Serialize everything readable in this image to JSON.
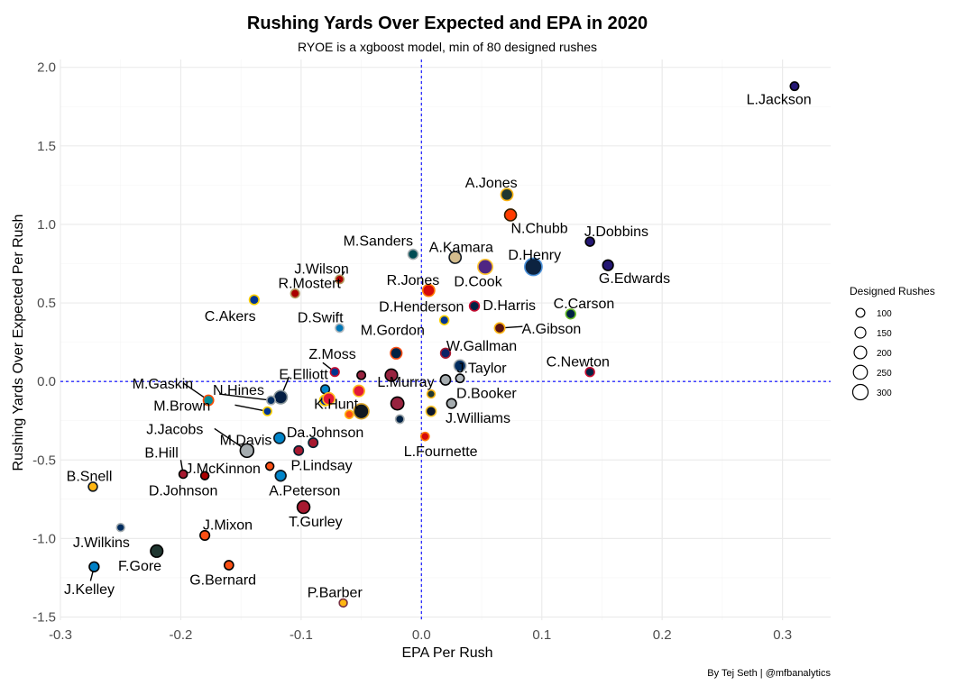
{
  "chart_data": {
    "type": "scatter",
    "title": "Rushing Yards Over Expected and EPA in 2020",
    "subtitle": "RYOE is a xgboost model, min of 80 designed rushes",
    "xlabel": "EPA Per Rush",
    "ylabel": "Rushing Yards Over Expected Per Rush",
    "caption": "By Tej Seth | @mfbanalytics",
    "xlim": [
      -0.3,
      0.34
    ],
    "ylim": [
      -1.52,
      2.05
    ],
    "x_ticks": [
      -0.3,
      -0.2,
      -0.1,
      0.0,
      0.1,
      0.2,
      0.3
    ],
    "x_tick_labels": [
      "-0.3",
      "-0.2",
      "-0.1",
      "0.0",
      "0.1",
      "0.2",
      "0.3"
    ],
    "y_ticks": [
      -1.5,
      -1.0,
      -0.5,
      0.0,
      0.5,
      1.0,
      1.5,
      2.0
    ],
    "y_tick_labels": [
      "-1.5",
      "-1.0",
      "-0.5",
      "0.0",
      "0.5",
      "1.0",
      "1.5",
      "2.0"
    ],
    "reference_lines": {
      "x": 0,
      "y": 0,
      "color": "#2b2bff"
    },
    "grid": true,
    "legend": {
      "title": "Designed Rushes",
      "placement": "right",
      "values": [
        100,
        150,
        200,
        250,
        300
      ],
      "labels": [
        "100",
        "150",
        "200",
        "250",
        "300"
      ]
    },
    "points": [
      {
        "label": "L.Jackson",
        "x": 0.31,
        "y": 1.88,
        "rushes": 90,
        "fill": "#241773",
        "stroke": "#000000",
        "lx": 0.297,
        "ly": 1.8
      },
      {
        "label": "A.Jones",
        "x": 0.071,
        "y": 1.19,
        "rushes": 180,
        "fill": "#203731",
        "stroke": "#FFB612",
        "lx": 0.058,
        "ly": 1.27
      },
      {
        "label": "N.Chubb",
        "x": 0.074,
        "y": 1.06,
        "rushes": 175,
        "fill": "#FF3C00",
        "stroke": "#311D00",
        "lx": 0.098,
        "ly": 0.98
      },
      {
        "label": "J.Dobbins",
        "x": 0.14,
        "y": 0.89,
        "rushes": 100,
        "fill": "#241773",
        "stroke": "#000000",
        "lx": 0.162,
        "ly": 0.96
      },
      {
        "label": "G.Edwards",
        "x": 0.155,
        "y": 0.74,
        "rushes": 140,
        "fill": "#241773",
        "stroke": "#000000",
        "lx": 0.177,
        "ly": 0.66
      },
      {
        "label": "M.Sanders",
        "x": -0.007,
        "y": 0.81,
        "rushes": 125,
        "fill": "#004C54",
        "stroke": "#A5ACAF",
        "lx": -0.036,
        "ly": 0.9
      },
      {
        "label": "A.Kamara",
        "x": 0.028,
        "y": 0.79,
        "rushes": 180,
        "fill": "#D3BC8D",
        "stroke": "#101820",
        "lx": 0.033,
        "ly": 0.86
      },
      {
        "label": "D.Henry",
        "x": 0.093,
        "y": 0.73,
        "rushes": 380,
        "fill": "#0C2340",
        "stroke": "#4B92DB",
        "lx": 0.094,
        "ly": 0.81
      },
      {
        "label": "D.Cook",
        "x": 0.053,
        "y": 0.73,
        "rushes": 280,
        "fill": "#4F2683",
        "stroke": "#FFC62F",
        "lx": 0.047,
        "ly": 0.64
      },
      {
        "label": "J.Wilson",
        "x": -0.068,
        "y": 0.65,
        "rushes": 90,
        "fill": "#AA0000",
        "stroke": "#B3995D",
        "lx": -0.083,
        "ly": 0.72
      },
      {
        "label": "R.Mostert",
        "x": -0.105,
        "y": 0.56,
        "rushes": 95,
        "fill": "#AA0000",
        "stroke": "#B3995D",
        "lx": -0.093,
        "ly": 0.63
      },
      {
        "label": "R.Jones",
        "x": 0.006,
        "y": 0.58,
        "rushes": 180,
        "fill": "#D50A0A",
        "stroke": "#FF7900",
        "lx": -0.007,
        "ly": 0.65
      },
      {
        "label": "C.Akers",
        "x": -0.139,
        "y": 0.52,
        "rushes": 115,
        "fill": "#003594",
        "stroke": "#FFD100",
        "lx": -0.159,
        "ly": 0.42
      },
      {
        "label": "D.Henderson",
        "x": 0.019,
        "y": 0.39,
        "rushes": 100,
        "fill": "#003594",
        "stroke": "#FFD100",
        "lx": 0.0,
        "ly": 0.48
      },
      {
        "label": "D.Harris",
        "x": 0.044,
        "y": 0.48,
        "rushes": 120,
        "fill": "#002244",
        "stroke": "#C60C30",
        "lx": 0.073,
        "ly": 0.49
      },
      {
        "label": "C.Carson",
        "x": 0.124,
        "y": 0.43,
        "rushes": 120,
        "fill": "#002244",
        "stroke": "#69BE28",
        "lx": 0.135,
        "ly": 0.5
      },
      {
        "label": "D.Swift",
        "x": -0.068,
        "y": 0.34,
        "rushes": 90,
        "fill": "#0076B6",
        "stroke": "#B0B7BC",
        "lx": -0.084,
        "ly": 0.41
      },
      {
        "label": "A.Gibson",
        "x": 0.065,
        "y": 0.34,
        "rushes": 135,
        "fill": "#5A1414",
        "stroke": "#FFB612",
        "lx": 0.108,
        "ly": 0.34
      },
      {
        "label": "M.Gordon",
        "x": -0.021,
        "y": 0.18,
        "rushes": 165,
        "fill": "#002244",
        "stroke": "#FB4F14",
        "lx": -0.024,
        "ly": 0.33
      },
      {
        "label": "Z.Moss",
        "x": -0.072,
        "y": 0.06,
        "rushes": 95,
        "fill": "#00338D",
        "stroke": "#C60C30",
        "lx": -0.074,
        "ly": 0.18
      },
      {
        "label": "W.Gallman",
        "x": 0.02,
        "y": 0.18,
        "rushes": 120,
        "fill": "#0B2265",
        "stroke": "#A71930",
        "lx": 0.05,
        "ly": 0.23
      },
      {
        "label": "C.Newton",
        "x": 0.14,
        "y": 0.06,
        "rushes": 100,
        "fill": "#002244",
        "stroke": "#C60C30",
        "lx": 0.13,
        "ly": 0.13
      },
      {
        "label": "E.Elliott",
        "x": -0.117,
        "y": -0.1,
        "rushes": 220,
        "fill": "#041E42",
        "stroke": "#869397",
        "lx": -0.098,
        "ly": 0.05
      },
      {
        "label": "J.Taylor",
        "x": 0.032,
        "y": 0.1,
        "rushes": 180,
        "fill": "#002C5F",
        "stroke": "#A2AAAD",
        "lx": 0.05,
        "ly": 0.09
      },
      {
        "label": "L.Murray",
        "x": -0.025,
        "y": 0.04,
        "rushes": 190,
        "fill": "#97233F",
        "stroke": "#000000",
        "lx": -0.013,
        "ly": 0.0
      },
      {
        "label": "",
        "x": -0.05,
        "y": 0.04,
        "rushes": 90,
        "fill": "#97233F",
        "stroke": "#000000",
        "lx": 0,
        "ly": 0
      },
      {
        "label": "",
        "x": 0.02,
        "y": 0.01,
        "rushes": 130,
        "fill": "#A5ACAF",
        "stroke": "#000000",
        "lx": 0,
        "ly": 0
      },
      {
        "label": "",
        "x": 0.032,
        "y": 0.02,
        "rushes": 90,
        "fill": "#B0B7BC",
        "stroke": "#000000",
        "lx": 0,
        "ly": 0
      },
      {
        "label": "M.Gaskin",
        "x": -0.177,
        "y": -0.12,
        "rushes": 130,
        "fill": "#008E97",
        "stroke": "#FC4C02",
        "lx": -0.215,
        "ly": -0.01
      },
      {
        "label": "N.Hines",
        "x": -0.125,
        "y": -0.12,
        "rushes": 90,
        "fill": "#002C5F",
        "stroke": "#A2AAAD",
        "lx": -0.152,
        "ly": -0.05
      },
      {
        "label": "M.Brown",
        "x": -0.128,
        "y": -0.19,
        "rushes": 90,
        "fill": "#003594",
        "stroke": "#FFD100",
        "lx": -0.199,
        "ly": -0.15
      },
      {
        "label": "",
        "x": -0.08,
        "y": -0.05,
        "rushes": 95,
        "fill": "#0085CA",
        "stroke": "#101820",
        "lx": 0,
        "ly": 0
      },
      {
        "label": "",
        "x": -0.08,
        "y": -0.12,
        "rushes": 150,
        "fill": "#003594",
        "stroke": "#FFD100",
        "lx": 0,
        "ly": 0
      },
      {
        "label": "K.Hunt",
        "x": -0.077,
        "y": -0.11,
        "rushes": 180,
        "fill": "#E31837",
        "stroke": "#FFB81C",
        "lx": -0.071,
        "ly": -0.14
      },
      {
        "label": "",
        "x": -0.052,
        "y": -0.06,
        "rushes": 160,
        "fill": "#E31837",
        "stroke": "#FFB81C",
        "lx": 0,
        "ly": 0
      },
      {
        "label": "",
        "x": -0.06,
        "y": -0.21,
        "rushes": 85,
        "fill": "#FB4F14",
        "stroke": "#FFB612",
        "lx": 0,
        "ly": 0
      },
      {
        "label": "",
        "x": -0.05,
        "y": -0.19,
        "rushes": 290,
        "fill": "#101820",
        "stroke": "#D7A22A",
        "lx": 0,
        "ly": 0
      },
      {
        "label": "",
        "x": -0.02,
        "y": -0.14,
        "rushes": 210,
        "fill": "#97233F",
        "stroke": "#000000",
        "lx": 0,
        "ly": 0
      },
      {
        "label": "",
        "x": -0.018,
        "y": -0.24,
        "rushes": 90,
        "fill": "#002244",
        "stroke": "#A5ACAF",
        "lx": 0,
        "ly": 0
      },
      {
        "label": "D.Booker",
        "x": 0.025,
        "y": -0.14,
        "rushes": 115,
        "fill": "#A5ACAF",
        "stroke": "#000000",
        "lx": 0.054,
        "ly": -0.07
      },
      {
        "label": "J.Williams",
        "x": 0.008,
        "y": -0.19,
        "rushes": 130,
        "fill": "#0B162A",
        "stroke": "#FFC62F",
        "lx": 0.047,
        "ly": -0.23
      },
      {
        "label": "",
        "x": 0.008,
        "y": -0.08,
        "rushes": 80,
        "fill": "#203731",
        "stroke": "#FFB612",
        "lx": 0,
        "ly": 0
      },
      {
        "label": "J.Jacobs",
        "x": -0.145,
        "y": -0.44,
        "rushes": 230,
        "fill": "#A5ACAF",
        "stroke": "#000000",
        "lx": -0.205,
        "ly": -0.3
      },
      {
        "label": "M.Davis",
        "x": -0.118,
        "y": -0.36,
        "rushes": 150,
        "fill": "#0085CA",
        "stroke": "#101820",
        "lx": -0.146,
        "ly": -0.37
      },
      {
        "label": "Da.Johnson",
        "x": -0.09,
        "y": -0.39,
        "rushes": 110,
        "fill": "#A71930",
        "stroke": "#03202F",
        "lx": -0.08,
        "ly": -0.32
      },
      {
        "label": "",
        "x": -0.102,
        "y": -0.44,
        "rushes": 110,
        "fill": "#A71930",
        "stroke": "#03202F",
        "lx": 0,
        "ly": 0
      },
      {
        "label": "B.Hill",
        "x": -0.198,
        "y": -0.59,
        "rushes": 85,
        "fill": "#A71930",
        "stroke": "#000000",
        "lx": -0.216,
        "ly": -0.45
      },
      {
        "label": "J.McKinnon",
        "x": -0.18,
        "y": -0.6,
        "rushes": 80,
        "fill": "#AA0000",
        "stroke": "#000000",
        "lx": -0.165,
        "ly": -0.55
      },
      {
        "label": "",
        "x": -0.126,
        "y": -0.54,
        "rushes": 80,
        "fill": "#FB4F14",
        "stroke": "#000000",
        "lx": 0,
        "ly": 0
      },
      {
        "label": "P.Lindsay",
        "x": -0.117,
        "y": -0.6,
        "rushes": 140,
        "fill": "#0085CA",
        "stroke": "#101820",
        "lx": -0.083,
        "ly": -0.53
      },
      {
        "label": "D.Johnson",
        "x": -0.18,
        "y": -0.6,
        "rushes": 80,
        "fill": "#AA0000",
        "stroke": "#000000",
        "lx": -0.198,
        "ly": -0.69
      },
      {
        "label": "A.Peterson",
        "x": -0.117,
        "y": -0.6,
        "rushes": 140,
        "fill": "#0085CA",
        "stroke": "#101820",
        "lx": -0.097,
        "ly": -0.69
      },
      {
        "label": "L.Fournette",
        "x": 0.003,
        "y": -0.35,
        "rushes": 85,
        "fill": "#D50A0A",
        "stroke": "#FF7900",
        "lx": 0.016,
        "ly": -0.44
      },
      {
        "label": "B.Snell",
        "x": -0.273,
        "y": -0.67,
        "rushes": 100,
        "fill": "#FFB612",
        "stroke": "#101820",
        "lx": -0.276,
        "ly": -0.6
      },
      {
        "label": "T.Gurley",
        "x": -0.098,
        "y": -0.8,
        "rushes": 200,
        "fill": "#A71930",
        "stroke": "#000000",
        "lx": -0.088,
        "ly": -0.89
      },
      {
        "label": "J.Mixon",
        "x": -0.18,
        "y": -0.98,
        "rushes": 115,
        "fill": "#FB4F14",
        "stroke": "#000000",
        "lx": -0.161,
        "ly": -0.91
      },
      {
        "label": "J.Wilkins",
        "x": -0.25,
        "y": -0.93,
        "rushes": 80,
        "fill": "#002C5F",
        "stroke": "#A2AAAD",
        "lx": -0.266,
        "ly": -1.02
      },
      {
        "label": "F.Gore",
        "x": -0.22,
        "y": -1.08,
        "rushes": 190,
        "fill": "#203731",
        "stroke": "#000000",
        "lx": -0.234,
        "ly": -1.17
      },
      {
        "label": "G.Bernard",
        "x": -0.16,
        "y": -1.17,
        "rushes": 105,
        "fill": "#FB4F14",
        "stroke": "#000000",
        "lx": -0.165,
        "ly": -1.26
      },
      {
        "label": "J.Kelley",
        "x": -0.272,
        "y": -1.18,
        "rushes": 120,
        "fill": "#0080C6",
        "stroke": "#000000",
        "lx": -0.276,
        "ly": -1.32
      },
      {
        "label": "P.Barber",
        "x": -0.065,
        "y": -1.41,
        "rushes": 80,
        "fill": "#FFB612",
        "stroke": "#773141",
        "lx": -0.072,
        "ly": -1.34
      }
    ],
    "leader_lines": [
      {
        "from": [
          -0.064,
          0.7
        ],
        "to": [
          -0.068,
          0.65
        ]
      },
      {
        "from": [
          -0.198,
          -0.01
        ],
        "to": [
          -0.177,
          -0.12
        ]
      },
      {
        "from": [
          -0.168,
          -0.08
        ],
        "to": [
          -0.125,
          -0.12
        ]
      },
      {
        "from": [
          -0.155,
          -0.15
        ],
        "to": [
          -0.128,
          -0.19
        ]
      },
      {
        "from": [
          -0.172,
          -0.3
        ],
        "to": [
          -0.145,
          -0.44
        ]
      },
      {
        "from": [
          -0.2,
          -0.5
        ],
        "to": [
          -0.198,
          -0.59
        ]
      },
      {
        "from": [
          -0.082,
          0.12
        ],
        "to": [
          -0.072,
          0.06
        ]
      },
      {
        "from": [
          0.084,
          0.35
        ],
        "to": [
          0.065,
          0.34
        ]
      },
      {
        "from": [
          -0.275,
          -1.27
        ],
        "to": [
          -0.272,
          -1.18
        ]
      },
      {
        "from": [
          -0.11,
          0.03
        ],
        "to": [
          -0.117,
          -0.1
        ]
      }
    ]
  }
}
